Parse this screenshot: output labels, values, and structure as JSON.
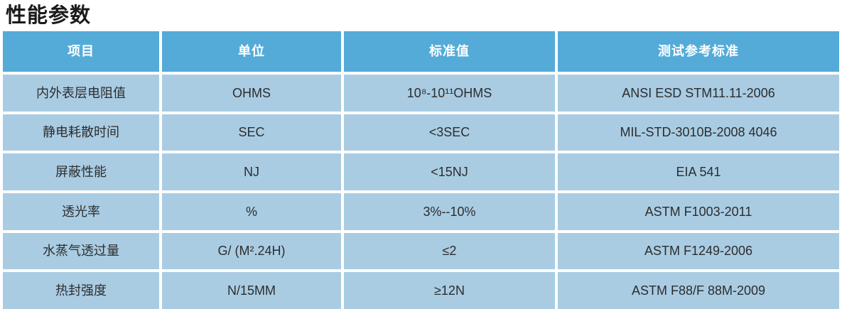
{
  "page_title": "性能参数",
  "colors": {
    "header_bg": "#54abd8",
    "row_bg": "#a9cce3",
    "title_color": "#1a1a1a",
    "header_text": "#ffffff",
    "cell_text": "#2d2d2d"
  },
  "table": {
    "headers": [
      "项目",
      "单位",
      "标准值",
      "测试参考标准"
    ],
    "rows": [
      {
        "item": "内外表层电阻值",
        "unit": "OHMS",
        "standard_value": "10⁸-10¹¹OHMS",
        "reference": "ANSI ESD STM11.11-2006"
      },
      {
        "item": "静电耗散时间",
        "unit": "SEC",
        "standard_value": "<3SEC",
        "reference": "MIL-STD-3010B-2008 4046"
      },
      {
        "item": "屏蔽性能",
        "unit": "NJ",
        "standard_value": "<15NJ",
        "reference": "EIA 541"
      },
      {
        "item": "透光率",
        "unit": "%",
        "standard_value": "3%--10%",
        "reference": "ASTM F1003-2011"
      },
      {
        "item": "水蒸气透过量",
        "unit": "G/ (M².24H)",
        "standard_value": "≤2",
        "reference": "ASTM F1249-2006"
      },
      {
        "item": "热封强度",
        "unit": "N/15MM",
        "standard_value": "≥12N",
        "reference": "ASTM F88/F 88M-2009"
      }
    ]
  }
}
